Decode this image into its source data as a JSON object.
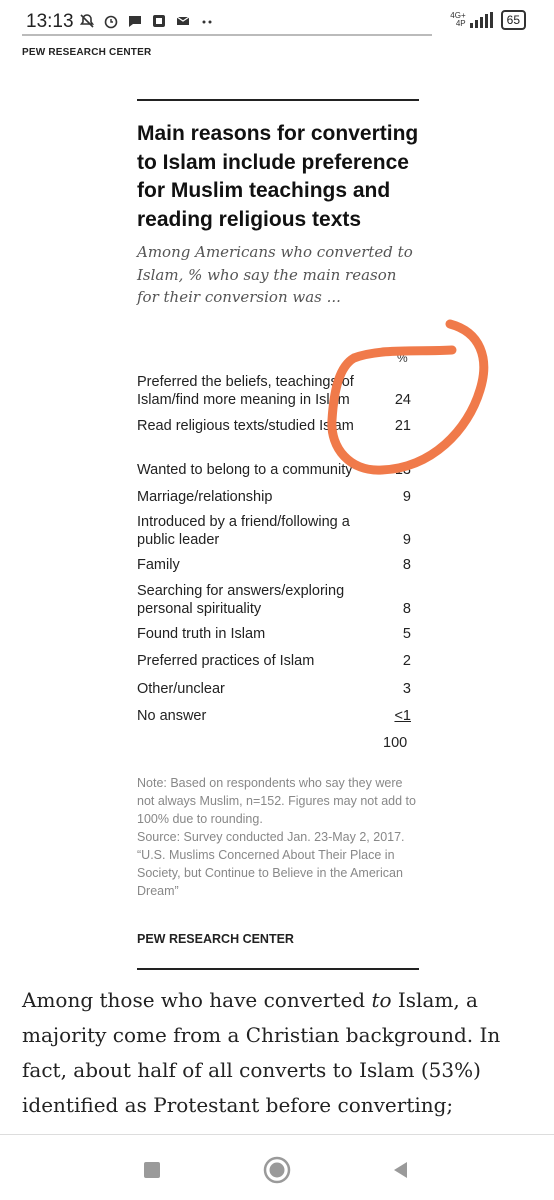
{
  "status_bar": {
    "time": "13:13",
    "network_top": "4G+",
    "network_bottom": "4P",
    "battery": "65",
    "icons": [
      "notifications-off-icon",
      "alarm-icon",
      "chat-icon",
      "app-icon",
      "mail-icon",
      "more-dots-icon"
    ]
  },
  "header": {
    "source": "PEW RESEARCH CENTER"
  },
  "card": {
    "title": "Main reasons for converting to Islam include preference for Muslim teachings and reading religious texts",
    "subtitle": "Among Americans who converted to Islam, % who say the main reason for their conversion was ...",
    "pct_header": "%",
    "rows": [
      {
        "label": "Preferred the beliefs, teachings of Islam/find more meaning in Islam",
        "value": "24"
      },
      {
        "label": "Read religious texts/studied Islam",
        "value": "21"
      },
      {
        "label": "Wanted to belong to a community",
        "value": "13"
      },
      {
        "label": "Marriage/relationship",
        "value": "9"
      },
      {
        "label": "Introduced by a friend/following a public leader",
        "value": "9"
      },
      {
        "label": "Family",
        "value": "8"
      },
      {
        "label": "Searching for answers/exploring personal spirituality",
        "value": "8"
      },
      {
        "label": "Found truth in Islam",
        "value": "5"
      },
      {
        "label": "Preferred practices of Islam",
        "value": "2"
      },
      {
        "label": "Other/unclear",
        "value": "3"
      },
      {
        "label": "No answer",
        "value": "<1"
      }
    ],
    "total": "100",
    "note": "Note: Based on respondents who say they were not always Muslim, n=152. Figures may not add to 100% due to rounding.",
    "source_line": "Source: Survey conducted Jan. 23-May 2, 2017.",
    "report_title": "“U.S. Muslims Concerned About Their Place in Society, but Continue to Believe in the American Dream”",
    "source": "PEW RESEARCH CENTER"
  },
  "annotation": {
    "color": "#f07a4a"
  },
  "article": {
    "part1": "Among those who have converted ",
    "emphasis": "to",
    "part2": " Islam, a majority come from a Christian background. In fact, about half of all converts to Islam (53%) identified as Protestant before converting;"
  },
  "nav": {
    "buttons": [
      "recents-button",
      "home-button",
      "back-button"
    ]
  }
}
